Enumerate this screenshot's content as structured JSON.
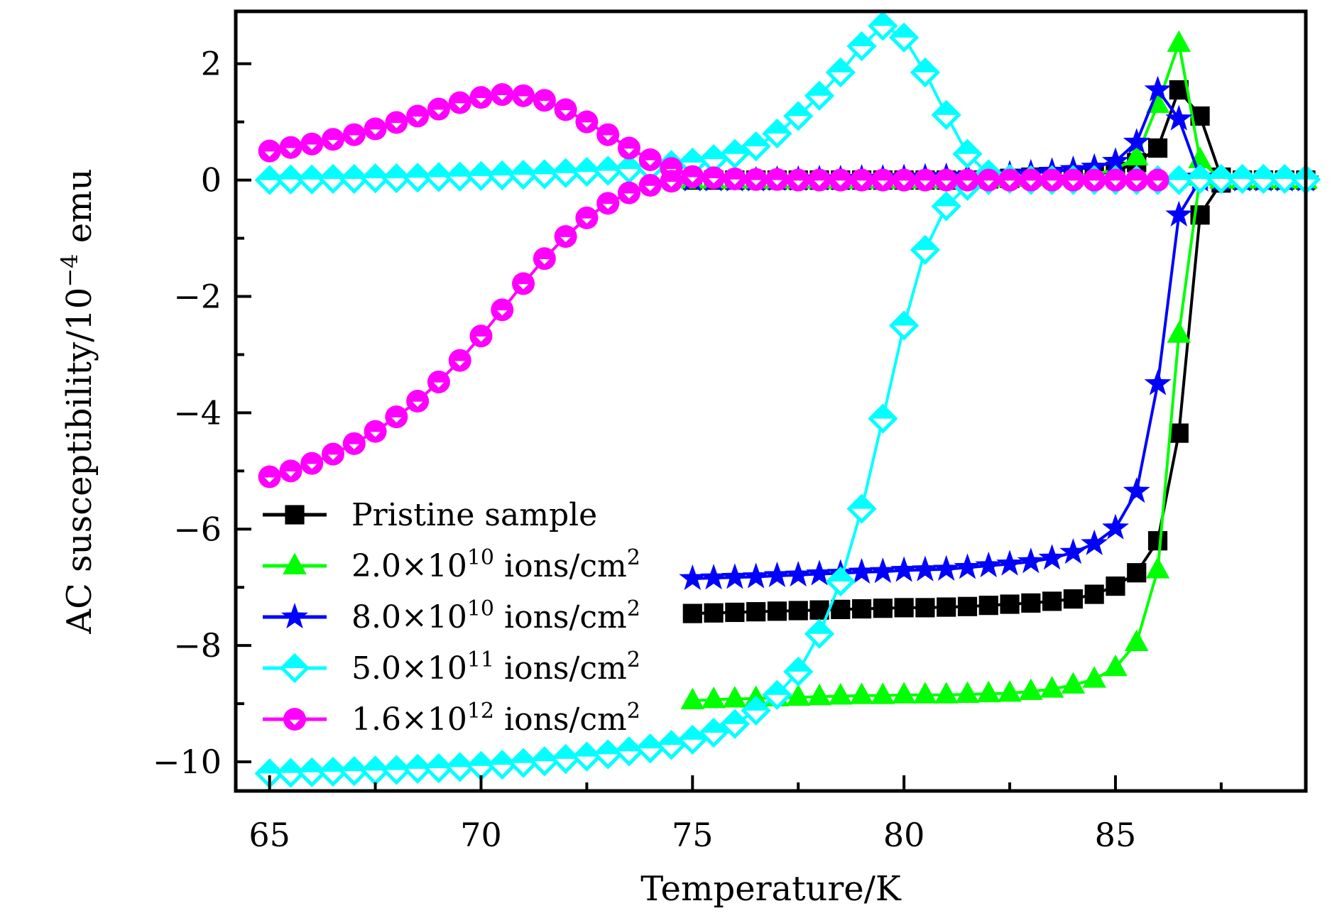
{
  "chart_data": {
    "type": "line",
    "title": "",
    "xlabel": "Temperature/K",
    "ylabel": {
      "prefix": "AC susceptibility/10",
      "superscript": "−4",
      "suffix": " emu"
    },
    "xlim": [
      64.2,
      89.5
    ],
    "ylim": [
      -10.5,
      2.9
    ],
    "x_ticks": [
      65,
      70,
      75,
      80,
      85
    ],
    "x_tick_labels": [
      "65",
      "70",
      "75",
      "80",
      "85"
    ],
    "x_minor_ticks": [
      67.5,
      72.5,
      77.5,
      82.5,
      87.5
    ],
    "y_ticks": [
      2,
      0,
      -2,
      -4,
      -6,
      -8,
      -10
    ],
    "y_tick_labels": [
      "2",
      "0",
      "−2",
      "−4",
      "−6",
      "−8",
      "−10"
    ],
    "y_minor_ticks": [
      1,
      -1,
      -3,
      -5,
      -7,
      -9
    ],
    "grid": false,
    "legend_position": "lower-left",
    "series": [
      {
        "name": "Pristine sample",
        "legend": {
          "mantissa": "Pristine sample",
          "exp": "",
          "unit": ""
        },
        "color": "#000000",
        "marker": "square",
        "branches": [
          {
            "part": "imaginary",
            "x": [
              75,
              75.5,
              76,
              76.5,
              77,
              77.5,
              78,
              78.5,
              79,
              79.5,
              80,
              80.5,
              81,
              81.5,
              82,
              82.5,
              83,
              83.5,
              84,
              84.5,
              85,
              85.5,
              86,
              86.5,
              87,
              87.5,
              88,
              88.5,
              89,
              89.5
            ],
            "y": [
              0,
              0,
              0,
              0,
              0,
              0,
              0,
              0,
              0,
              0,
              0,
              0,
              0,
              0,
              0.02,
              0.03,
              0.05,
              0.06,
              0.08,
              0.1,
              0.15,
              0.3,
              0.55,
              1.55,
              1.1,
              0.05,
              0,
              0,
              0,
              0
            ]
          },
          {
            "part": "real",
            "x": [
              75,
              75.5,
              76,
              76.5,
              77,
              77.5,
              78,
              78.5,
              79,
              79.5,
              80,
              80.5,
              81,
              81.5,
              82,
              82.5,
              83,
              83.5,
              84,
              84.5,
              85,
              85.5,
              86,
              86.5,
              87,
              87.5
            ],
            "y": [
              -7.45,
              -7.44,
              -7.43,
              -7.42,
              -7.41,
              -7.4,
              -7.39,
              -7.38,
              -7.37,
              -7.36,
              -7.35,
              -7.35,
              -7.34,
              -7.33,
              -7.31,
              -7.29,
              -7.27,
              -7.24,
              -7.2,
              -7.12,
              -6.98,
              -6.75,
              -6.2,
              -4.35,
              -0.6,
              -0.05
            ]
          }
        ]
      },
      {
        "name": "2.0×10^10 ions/cm^2",
        "legend": {
          "mantissa": "2.0×10",
          "exp": "10",
          "unit": " ions/cm",
          "unit_exp": "2"
        },
        "color": "#00ff00",
        "marker": "triangle",
        "branches": [
          {
            "part": "imaginary",
            "x": [
              75,
              75.5,
              76,
              76.5,
              77,
              77.5,
              78,
              78.5,
              79,
              79.5,
              80,
              80.5,
              81,
              81.5,
              82,
              82.5,
              83,
              83.5,
              84,
              84.5,
              85,
              85.5,
              86,
              86.5,
              87,
              87.5,
              88,
              88.5,
              89,
              89.5
            ],
            "y": [
              0,
              0,
              0,
              0,
              0,
              0,
              0,
              0,
              0,
              0,
              0,
              0,
              0,
              0,
              0.02,
              0.03,
              0.04,
              0.05,
              0.07,
              0.1,
              0.18,
              0.4,
              1.3,
              2.35,
              0.35,
              0,
              0,
              0,
              0,
              0
            ]
          },
          {
            "part": "real",
            "x": [
              75,
              75.5,
              76,
              76.5,
              77,
              77.5,
              78,
              78.5,
              79,
              79.5,
              80,
              80.5,
              81,
              81.5,
              82,
              82.5,
              83,
              83.5,
              84,
              84.5,
              85,
              85.5,
              86,
              86.5,
              87,
              87.5
            ],
            "y": [
              -8.95,
              -8.93,
              -8.92,
              -8.91,
              -8.9,
              -8.89,
              -8.88,
              -8.87,
              -8.86,
              -8.86,
              -8.85,
              -8.85,
              -8.85,
              -8.84,
              -8.83,
              -8.82,
              -8.79,
              -8.75,
              -8.68,
              -8.58,
              -8.38,
              -7.95,
              -6.7,
              -2.65,
              0.05,
              0
            ]
          }
        ]
      },
      {
        "name": "8.0×10^10 ions/cm^2",
        "legend": {
          "mantissa": "8.0×10",
          "exp": "10",
          "unit": " ions/cm",
          "unit_exp": "2"
        },
        "color": "#0000ff",
        "marker": "star",
        "branches": [
          {
            "part": "imaginary",
            "x": [
              75,
              75.5,
              76,
              76.5,
              77,
              77.5,
              78,
              78.5,
              79,
              79.5,
              80,
              80.5,
              81,
              81.5,
              82,
              82.5,
              83,
              83.5,
              84,
              84.5,
              85,
              85.5,
              86,
              86.5,
              87,
              87.5,
              88,
              88.5,
              89,
              89.5
            ],
            "y": [
              0,
              0,
              0,
              0,
              0.01,
              0.01,
              0.02,
              0.02,
              0.03,
              0.03,
              0.04,
              0.05,
              0.06,
              0.07,
              0.08,
              0.1,
              0.12,
              0.15,
              0.18,
              0.22,
              0.32,
              0.65,
              1.55,
              1.05,
              0.05,
              0,
              0,
              0,
              0,
              0
            ]
          },
          {
            "part": "real",
            "x": [
              75,
              75.5,
              76,
              76.5,
              77,
              77.5,
              78,
              78.5,
              79,
              79.5,
              80,
              80.5,
              81,
              81.5,
              82,
              82.5,
              83,
              83.5,
              84,
              84.5,
              85,
              85.5,
              86,
              86.5,
              87,
              87.5
            ],
            "y": [
              -6.85,
              -6.84,
              -6.83,
              -6.82,
              -6.8,
              -6.79,
              -6.77,
              -6.76,
              -6.74,
              -6.73,
              -6.71,
              -6.7,
              -6.69,
              -6.66,
              -6.63,
              -6.6,
              -6.56,
              -6.5,
              -6.4,
              -6.25,
              -5.98,
              -5.35,
              -3.5,
              -0.6,
              0,
              0
            ]
          }
        ]
      },
      {
        "name": "5.0×10^11 ions/cm^2",
        "legend": {
          "mantissa": "5.0×10",
          "exp": "11",
          "unit": " ions/cm",
          "unit_exp": "2"
        },
        "color": "#00ffff",
        "marker": "diamond",
        "branches": [
          {
            "part": "imaginary",
            "x": [
              65,
              65.5,
              66,
              66.5,
              67,
              67.5,
              68,
              68.5,
              69,
              69.5,
              70,
              70.5,
              71,
              71.5,
              72,
              72.5,
              73,
              73.5,
              74,
              74.5,
              75,
              75.5,
              76,
              76.5,
              77,
              77.5,
              78,
              78.5,
              79,
              79.5,
              80,
              80.5,
              81,
              81.5,
              82,
              82.5,
              83,
              83.5,
              84,
              84.5,
              85,
              85.5,
              86,
              86.5,
              87,
              87.5,
              88,
              88.5,
              89,
              89.5
            ],
            "y": [
              0,
              0.01,
              0.01,
              0.02,
              0.02,
              0.03,
              0.03,
              0.04,
              0.05,
              0.06,
              0.07,
              0.08,
              0.09,
              0.1,
              0.12,
              0.14,
              0.16,
              0.19,
              0.22,
              0.26,
              0.3,
              0.36,
              0.45,
              0.58,
              0.8,
              1.1,
              1.45,
              1.85,
              2.3,
              2.65,
              2.45,
              1.85,
              1.12,
              0.45,
              0.1,
              0.02,
              0,
              0,
              0,
              0,
              0,
              0,
              0,
              0,
              0.02,
              0.02,
              0.02,
              0.02,
              0.02,
              0.01
            ]
          },
          {
            "part": "real",
            "x": [
              65,
              65.5,
              66,
              66.5,
              67,
              67.5,
              68,
              68.5,
              69,
              69.5,
              70,
              70.5,
              71,
              71.5,
              72,
              72.5,
              73,
              73.5,
              74,
              74.5,
              75,
              75.5,
              76,
              76.5,
              77,
              77.5,
              78,
              78.5,
              79,
              79.5,
              80,
              80.5,
              81,
              81.5,
              82
            ],
            "y": [
              -10.2,
              -10.19,
              -10.18,
              -10.17,
              -10.16,
              -10.15,
              -10.14,
              -10.12,
              -10.11,
              -10.09,
              -10.07,
              -10.05,
              -10.02,
              -9.99,
              -9.95,
              -9.91,
              -9.87,
              -9.82,
              -9.77,
              -9.71,
              -9.62,
              -9.5,
              -9.35,
              -9.12,
              -8.85,
              -8.45,
              -7.8,
              -6.9,
              -5.65,
              -4.1,
              -2.5,
              -1.2,
              -0.45,
              -0.1,
              0
            ]
          }
        ]
      },
      {
        "name": "1.6×10^12 ions/cm^2",
        "legend": {
          "mantissa": "1.6×10",
          "exp": "12",
          "unit": " ions/cm",
          "unit_exp": "2"
        },
        "color": "#ff00ff",
        "marker": "circle",
        "branches": [
          {
            "part": "imaginary",
            "x": [
              65,
              65.5,
              66,
              66.5,
              67,
              67.5,
              68,
              68.5,
              69,
              69.5,
              70,
              70.5,
              71,
              71.5,
              72,
              72.5,
              73,
              73.5,
              74,
              74.5,
              75,
              75.5,
              76,
              76.5,
              77,
              77.5,
              78,
              78.5,
              79,
              79.5,
              80,
              80.5,
              81,
              81.5,
              82,
              82.5,
              83,
              83.5,
              84,
              84.5,
              85,
              85.5,
              86
            ],
            "y": [
              0.5,
              0.56,
              0.62,
              0.7,
              0.78,
              0.88,
              0.99,
              1.1,
              1.22,
              1.33,
              1.42,
              1.47,
              1.45,
              1.37,
              1.21,
              1.0,
              0.78,
              0.55,
              0.35,
              0.2,
              0.06,
              0.04,
              0.02,
              0.01,
              0.01,
              0,
              0,
              0,
              0,
              0,
              0,
              0,
              0,
              0,
              0,
              0,
              0,
              0,
              0,
              0,
              0,
              0,
              0
            ]
          },
          {
            "part": "real",
            "x": [
              65,
              65.5,
              66,
              66.5,
              67,
              67.5,
              68,
              68.5,
              69,
              69.5,
              70,
              70.5,
              71,
              71.5,
              72,
              72.5,
              73,
              73.5,
              74,
              74.5
            ],
            "y": [
              -5.1,
              -5.0,
              -4.87,
              -4.71,
              -4.53,
              -4.32,
              -4.07,
              -3.8,
              -3.47,
              -3.1,
              -2.68,
              -2.23,
              -1.78,
              -1.35,
              -0.97,
              -0.65,
              -0.4,
              -0.22,
              -0.09,
              -0.02
            ]
          }
        ]
      }
    ]
  }
}
